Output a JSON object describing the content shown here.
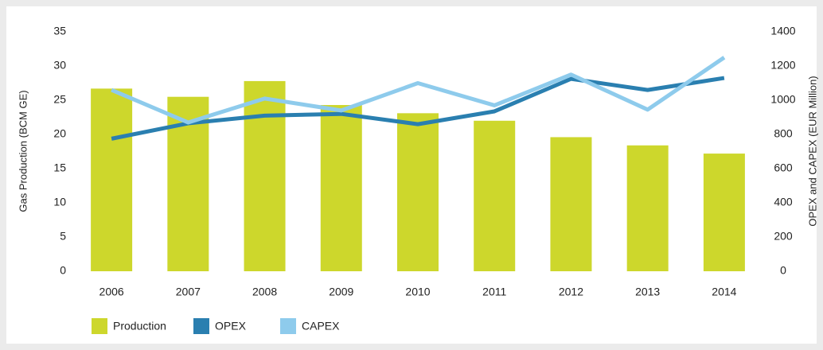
{
  "chart_data": {
    "type": "combo",
    "categories": [
      "2006",
      "2007",
      "2008",
      "2009",
      "2010",
      "2011",
      "2012",
      "2013",
      "2014"
    ],
    "series": [
      {
        "name": "Production",
        "type": "bar",
        "color": "#cdd72c",
        "axis": "y",
        "values": [
          26.7,
          25.5,
          27.8,
          24.3,
          23.1,
          22.0,
          19.6,
          18.4,
          17.2
        ]
      },
      {
        "name": "OPEX",
        "type": "line",
        "color": "#2a7fb0",
        "axis": "y2",
        "values": [
          775,
          865,
          910,
          920,
          860,
          935,
          1125,
          1060,
          1130
        ]
      },
      {
        "name": "CAPEX",
        "type": "line",
        "color": "#8ecbec",
        "axis": "y2",
        "values": [
          1060,
          870,
          1010,
          940,
          1100,
          970,
          1150,
          945,
          1250
        ]
      }
    ],
    "ylabel": "Gas Production (BCM GE)",
    "y2label": "OPEX and CAPEX (EUR Million)",
    "ylim": [
      0,
      35
    ],
    "yticks": [
      0,
      5,
      10,
      15,
      20,
      25,
      30,
      35
    ],
    "y2lim": [
      0,
      1400
    ],
    "y2ticks": [
      0,
      200,
      400,
      600,
      800,
      1000,
      1200,
      1400
    ],
    "grid": false,
    "legend": "bottom-left"
  }
}
